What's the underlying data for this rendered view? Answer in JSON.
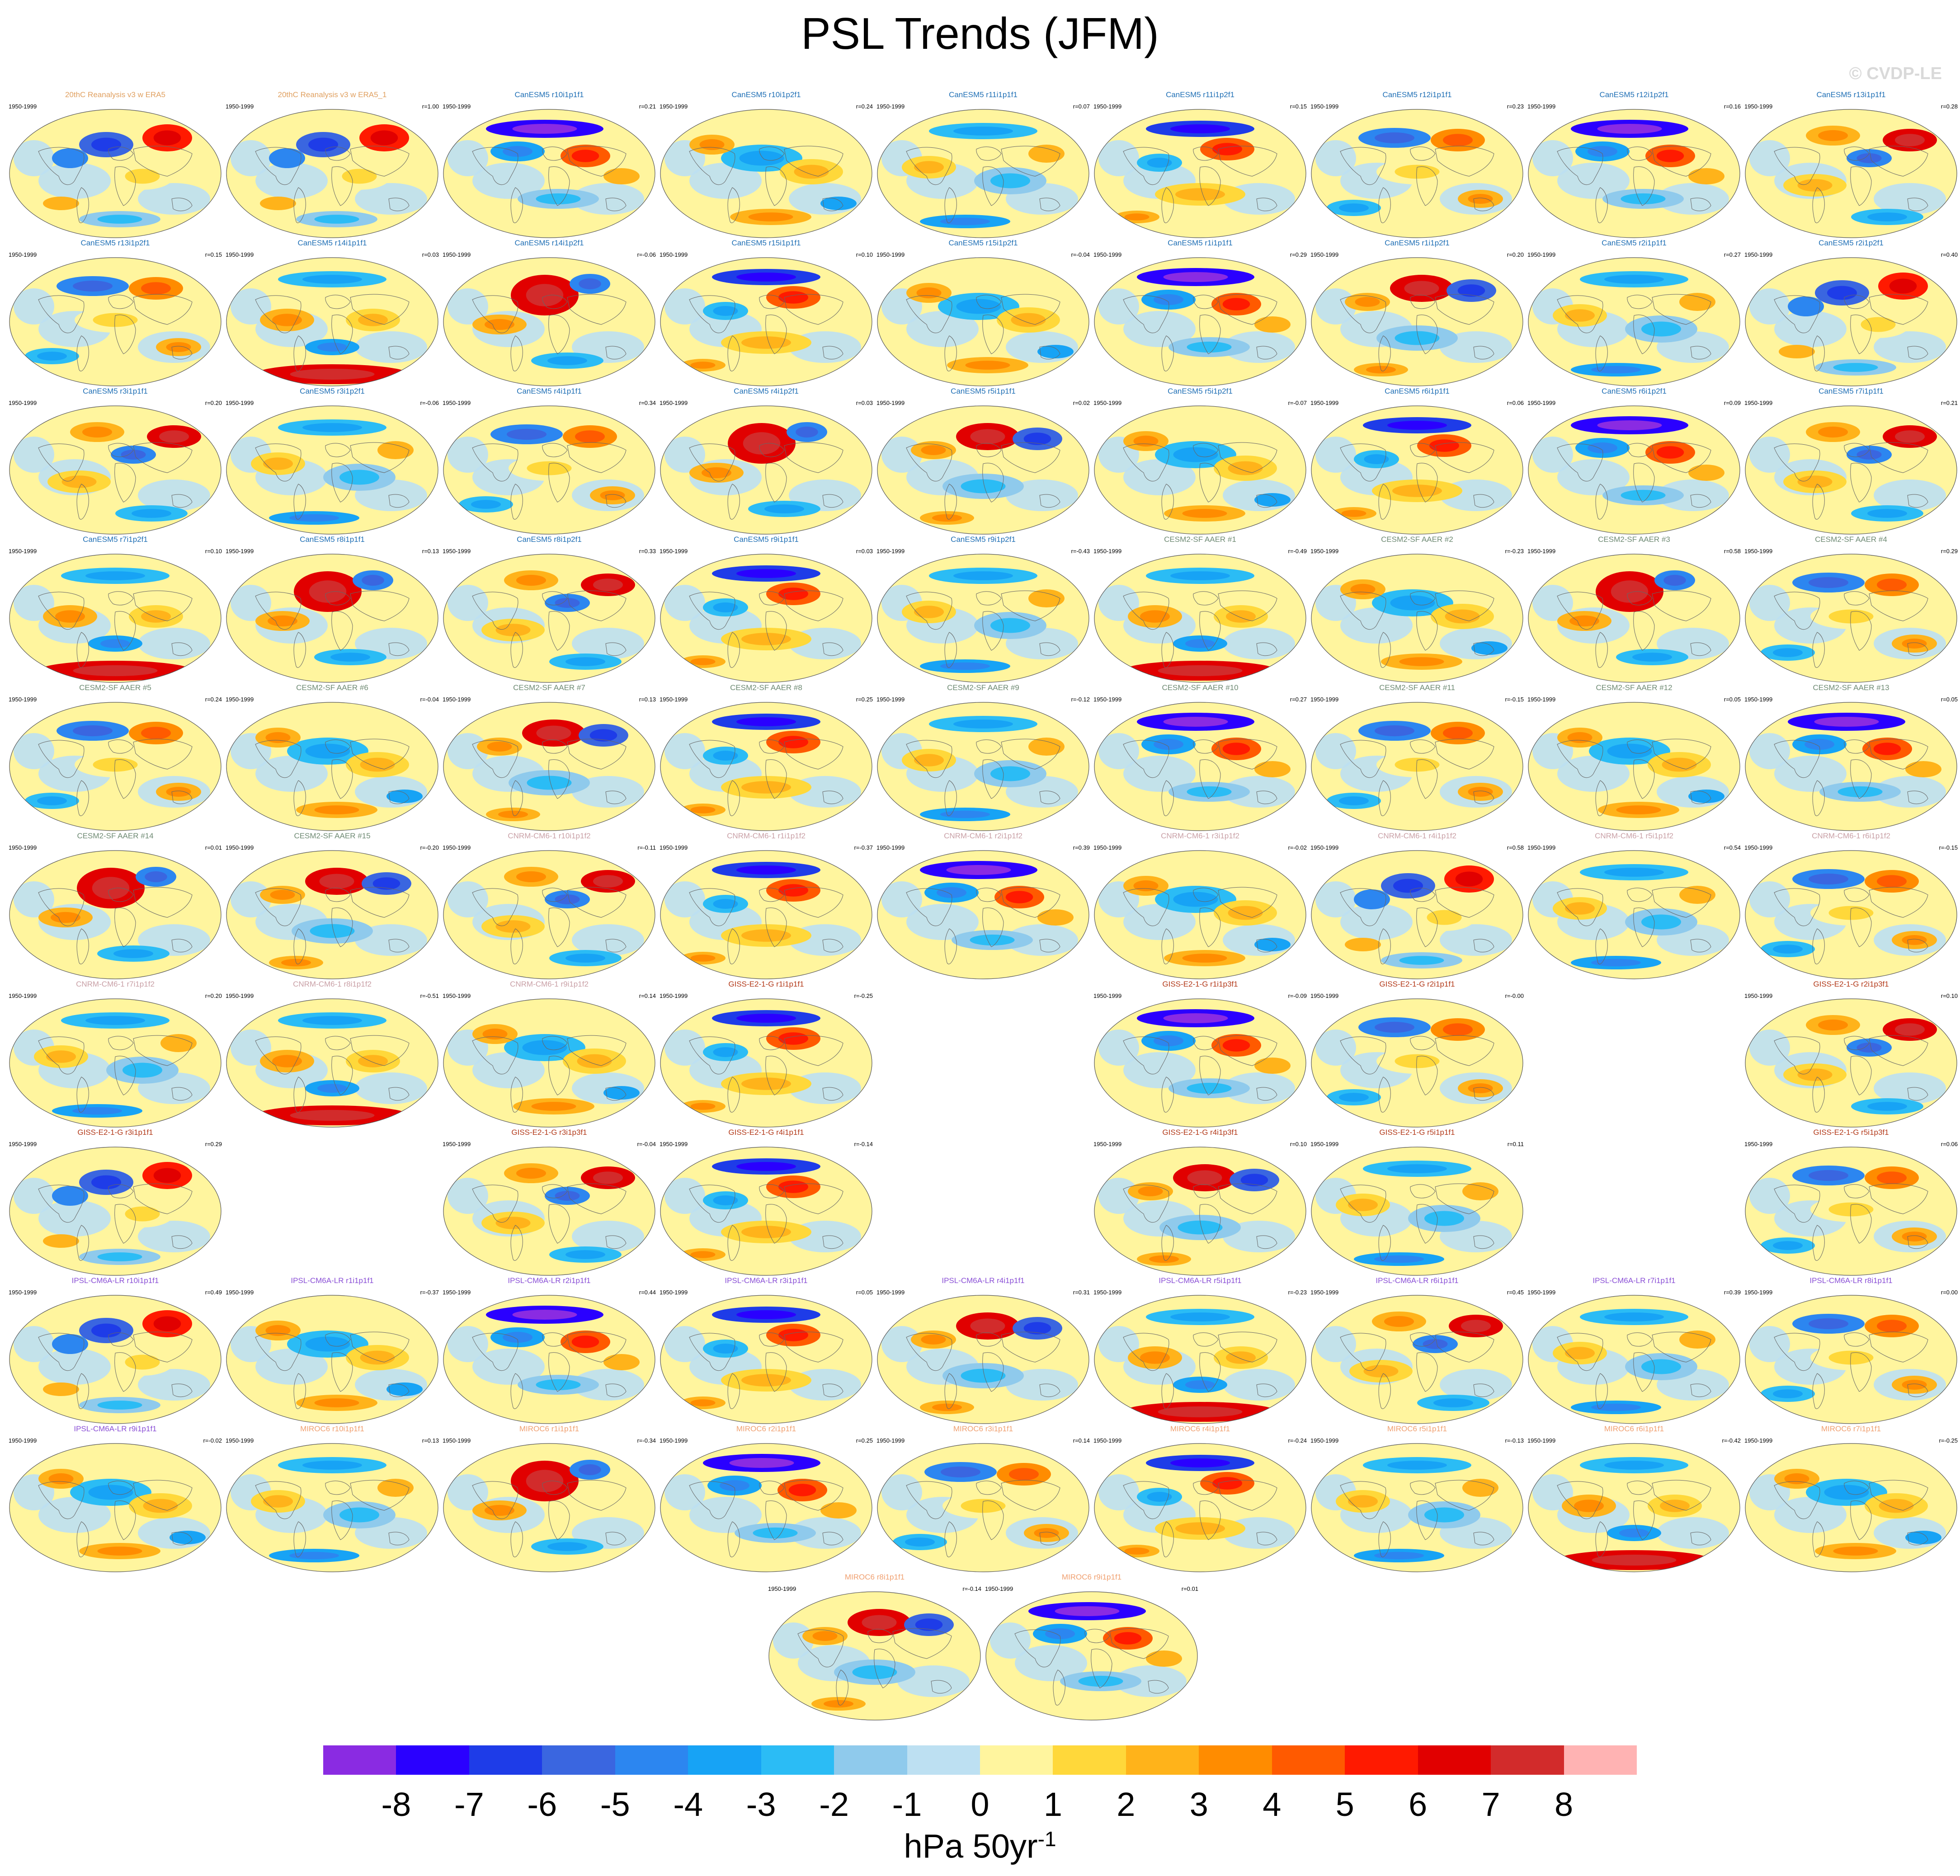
{
  "title": "PSL Trends (JFM)",
  "watermark": "© CVDP-LE",
  "units": {
    "text": "hPa 50yr",
    "sup": "-1"
  },
  "chart_data": {
    "type": "heatmap",
    "projection": "global-map-panels",
    "variable": "PSL",
    "season": "JFM",
    "period": "1950-1999",
    "colorbar": {
      "levels": [
        -8,
        -7,
        -6,
        -5,
        -4,
        -3,
        -2,
        -1,
        0,
        1,
        2,
        3,
        4,
        5,
        6,
        7,
        8
      ],
      "colors": [
        "#8a2be2",
        "#2a00ff",
        "#1e3ce8",
        "#3a66e0",
        "#2c86f0",
        "#17a3f5",
        "#2bbcf5",
        "#8fcaec",
        "#bde0f2",
        "#fff59e",
        "#ffd83a",
        "#ffb31a",
        "#ff8c00",
        "#ff5a00",
        "#ff1a00",
        "#e10000",
        "#d22b2b",
        "#ffb3b3"
      ]
    },
    "panels": [
      {
        "title": "20thC Reanalysis v3 w ERA5",
        "corr": "",
        "color": "#e0a060",
        "pattern": 0
      },
      {
        "title": "20thC Reanalysis v3 w ERA5_1",
        "corr": "r=1.00",
        "color": "#e0a060",
        "pattern": 0
      },
      {
        "title": "CanESM5 r10i1p1f1",
        "corr": "r=0.21",
        "color": "#1f6fb5",
        "pattern": 2
      },
      {
        "title": "CanESM5 r10i1p2f1",
        "corr": "r=0.24",
        "color": "#1f6fb5",
        "pattern": 4
      },
      {
        "title": "CanESM5 r11i1p1f1",
        "corr": "r=0.07",
        "color": "#1f6fb5",
        "pattern": 3
      },
      {
        "title": "CanESM5 r11i1p2f1",
        "corr": "r=0.15",
        "color": "#1f6fb5",
        "pattern": 5
      },
      {
        "title": "CanESM5 r12i1p1f1",
        "corr": "r=0.23",
        "color": "#1f6fb5",
        "pattern": 1
      },
      {
        "title": "CanESM5 r12i1p2f1",
        "corr": "r=0.16",
        "color": "#1f6fb5",
        "pattern": 2
      },
      {
        "title": "CanESM5 r13i1p1f1",
        "corr": "r=0.28",
        "color": "#1f6fb5",
        "pattern": 6
      },
      {
        "title": "CanESM5 r13i1p2f1",
        "corr": "r=0.15",
        "color": "#1f6fb5",
        "pattern": 1
      },
      {
        "title": "CanESM5 r14i1p1f1",
        "corr": "r=0.03",
        "color": "#1f6fb5",
        "pattern": 7
      },
      {
        "title": "CanESM5 r14i1p2f1",
        "corr": "r=-0.06",
        "color": "#1f6fb5",
        "pattern": 8
      },
      {
        "title": "CanESM5 r15i1p1f1",
        "corr": "r=0.10",
        "color": "#1f6fb5",
        "pattern": 5
      },
      {
        "title": "CanESM5 r15i1p2f1",
        "corr": "r=-0.04",
        "color": "#1f6fb5",
        "pattern": 4
      },
      {
        "title": "CanESM5 r1i1p1f1",
        "corr": "r=0.29",
        "color": "#1f6fb5",
        "pattern": 2
      },
      {
        "title": "CanESM5 r1i1p2f1",
        "corr": "r=0.20",
        "color": "#1f6fb5",
        "pattern": 9
      },
      {
        "title": "CanESM5 r2i1p1f1",
        "corr": "r=0.27",
        "color": "#1f6fb5",
        "pattern": 3
      },
      {
        "title": "CanESM5 r2i1p2f1",
        "corr": "r=0.40",
        "color": "#1f6fb5",
        "pattern": 0
      },
      {
        "title": "CanESM5 r3i1p1f1",
        "corr": "r=0.20",
        "color": "#1f6fb5",
        "pattern": 6
      },
      {
        "title": "CanESM5 r3i1p2f1",
        "corr": "r=-0.06",
        "color": "#1f6fb5",
        "pattern": 3
      },
      {
        "title": "CanESM5 r4i1p1f1",
        "corr": "r=0.34",
        "color": "#1f6fb5",
        "pattern": 1
      },
      {
        "title": "CanESM5 r4i1p2f1",
        "corr": "r=0.03",
        "color": "#1f6fb5",
        "pattern": 8
      },
      {
        "title": "CanESM5 r5i1p1f1",
        "corr": "r=0.02",
        "color": "#1f6fb5",
        "pattern": 9
      },
      {
        "title": "CanESM5 r5i1p2f1",
        "corr": "r=-0.07",
        "color": "#1f6fb5",
        "pattern": 4
      },
      {
        "title": "CanESM5 r6i1p1f1",
        "corr": "r=0.06",
        "color": "#1f6fb5",
        "pattern": 5
      },
      {
        "title": "CanESM5 r6i1p2f1",
        "corr": "r=0.09",
        "color": "#1f6fb5",
        "pattern": 2
      },
      {
        "title": "CanESM5 r7i1p1f1",
        "corr": "r=0.21",
        "color": "#1f6fb5",
        "pattern": 6
      },
      {
        "title": "CanESM5 r7i1p2f1",
        "corr": "r=0.10",
        "color": "#1f6fb5",
        "pattern": 7
      },
      {
        "title": "CanESM5 r8i1p1f1",
        "corr": "r=0.13",
        "color": "#1f6fb5",
        "pattern": 8
      },
      {
        "title": "CanESM5 r8i1p2f1",
        "corr": "r=0.33",
        "color": "#1f6fb5",
        "pattern": 6
      },
      {
        "title": "CanESM5 r9i1p1f1",
        "corr": "r=0.03",
        "color": "#1f6fb5",
        "pattern": 5
      },
      {
        "title": "CanESM5 r9i1p2f1",
        "corr": "r=-0.43",
        "color": "#1f6fb5",
        "pattern": 3
      },
      {
        "title": "CESM2-SF AAER #1",
        "corr": "r=-0.49",
        "color": "#6e8a73",
        "pattern": 7
      },
      {
        "title": "CESM2-SF AAER #2",
        "corr": "r=-0.23",
        "color": "#6e8a73",
        "pattern": 4
      },
      {
        "title": "CESM2-SF AAER #3",
        "corr": "r=0.58",
        "color": "#6e8a73",
        "pattern": 8
      },
      {
        "title": "CESM2-SF AAER #4",
        "corr": "r=0.29",
        "color": "#6e8a73",
        "pattern": 1
      },
      {
        "title": "CESM2-SF AAER #5",
        "corr": "r=0.24",
        "color": "#6e8a73",
        "pattern": 1
      },
      {
        "title": "CESM2-SF AAER #6",
        "corr": "r=-0.04",
        "color": "#6e8a73",
        "pattern": 4
      },
      {
        "title": "CESM2-SF AAER #7",
        "corr": "r=0.13",
        "color": "#6e8a73",
        "pattern": 9
      },
      {
        "title": "CESM2-SF AAER #8",
        "corr": "r=0.25",
        "color": "#6e8a73",
        "pattern": 5
      },
      {
        "title": "CESM2-SF AAER #9",
        "corr": "r=-0.12",
        "color": "#6e8a73",
        "pattern": 3
      },
      {
        "title": "CESM2-SF AAER #10",
        "corr": "r=0.27",
        "color": "#6e8a73",
        "pattern": 2
      },
      {
        "title": "CESM2-SF AAER #11",
        "corr": "r=-0.15",
        "color": "#6e8a73",
        "pattern": 1
      },
      {
        "title": "CESM2-SF AAER #12",
        "corr": "r=0.05",
        "color": "#6e8a73",
        "pattern": 4
      },
      {
        "title": "CESM2-SF AAER #13",
        "corr": "r=0.05",
        "color": "#6e8a73",
        "pattern": 2
      },
      {
        "title": "CESM2-SF AAER #14",
        "corr": "r=0.01",
        "color": "#6e8a73",
        "pattern": 8
      },
      {
        "title": "CESM2-SF AAER #15",
        "corr": "r=-0.20",
        "color": "#6e8a73",
        "pattern": 9
      },
      {
        "title": "CNRM-CM6-1 r10i1p1f2",
        "corr": "r=-0.11",
        "color": "#c9a0a6",
        "pattern": 6
      },
      {
        "title": "CNRM-CM6-1 r1i1p1f2",
        "corr": "r=-0.37",
        "color": "#c9a0a6",
        "pattern": 5
      },
      {
        "title": "CNRM-CM6-1 r2i1p1f2",
        "corr": "r=0.39",
        "color": "#c9a0a6",
        "pattern": 2
      },
      {
        "title": "CNRM-CM6-1 r3i1p1f2",
        "corr": "r=-0.02",
        "color": "#c9a0a6",
        "pattern": 4
      },
      {
        "title": "CNRM-CM6-1 r4i1p1f2",
        "corr": "r=0.58",
        "color": "#c9a0a6",
        "pattern": 0
      },
      {
        "title": "CNRM-CM6-1 r5i1p1f2",
        "corr": "r=0.54",
        "color": "#c9a0a6",
        "pattern": 3
      },
      {
        "title": "CNRM-CM6-1 r6i1p1f2",
        "corr": "r=-0.15",
        "color": "#c9a0a6",
        "pattern": 1
      },
      {
        "title": "CNRM-CM6-1 r7i1p1f2",
        "corr": "r=0.20",
        "color": "#c9a0a6",
        "pattern": 3
      },
      {
        "title": "CNRM-CM6-1 r8i1p1f2",
        "corr": "r=-0.51",
        "color": "#c9a0a6",
        "pattern": 7
      },
      {
        "title": "CNRM-CM6-1 r9i1p1f2",
        "corr": "r=0.14",
        "color": "#c9a0a6",
        "pattern": 4
      },
      {
        "title": "GISS-E2-1-G r1i1p1f1",
        "corr": "r=-0.25",
        "color": "#b33a1a",
        "pattern": 5
      },
      {
        "title": "GISS-E2-1-G r1i1p3f1",
        "corr": "r=-0.09",
        "color": "#b33a1a",
        "pattern": 2
      },
      {
        "title": "GISS-E2-1-G r2i1p1f1",
        "corr": "r=-0.00",
        "color": "#b33a1a",
        "pattern": 1
      },
      {
        "title": "GISS-E2-1-G r2i1p3f1",
        "corr": "r=0.10",
        "color": "#b33a1a",
        "pattern": 6
      },
      {
        "title": "GISS-E2-1-G r3i1p1f1",
        "corr": "r=0.29",
        "color": "#b33a1a",
        "pattern": 0
      },
      {
        "title": "GISS-E2-1-G r3i1p3f1",
        "corr": "r=-0.04",
        "color": "#b33a1a",
        "pattern": 6
      },
      {
        "title": "GISS-E2-1-G r4i1p1f1",
        "corr": "r=-0.14",
        "color": "#b33a1a",
        "pattern": 5
      },
      {
        "title": "GISS-E2-1-G r4i1p3f1",
        "corr": "r=0.10",
        "color": "#b33a1a",
        "pattern": 9
      },
      {
        "title": "GISS-E2-1-G r5i1p1f1",
        "corr": "r=0.11",
        "color": "#b33a1a",
        "pattern": 3
      },
      {
        "title": "GISS-E2-1-G r5i1p3f1",
        "corr": "r=0.06",
        "color": "#b33a1a",
        "pattern": 1
      },
      {
        "title": "IPSL-CM6A-LR r10i1p1f1",
        "corr": "r=0.49",
        "color": "#8a4fd6",
        "pattern": 0
      },
      {
        "title": "IPSL-CM6A-LR r1i1p1f1",
        "corr": "r=-0.37",
        "color": "#8a4fd6",
        "pattern": 4
      },
      {
        "title": "IPSL-CM6A-LR r2i1p1f1",
        "corr": "r=0.44",
        "color": "#8a4fd6",
        "pattern": 2
      },
      {
        "title": "IPSL-CM6A-LR r3i1p1f1",
        "corr": "r=0.05",
        "color": "#8a4fd6",
        "pattern": 5
      },
      {
        "title": "IPSL-CM6A-LR r4i1p1f1",
        "corr": "r=0.31",
        "color": "#8a4fd6",
        "pattern": 9
      },
      {
        "title": "IPSL-CM6A-LR r5i1p1f1",
        "corr": "r=-0.23",
        "color": "#8a4fd6",
        "pattern": 7
      },
      {
        "title": "IPSL-CM6A-LR r6i1p1f1",
        "corr": "r=0.45",
        "color": "#8a4fd6",
        "pattern": 6
      },
      {
        "title": "IPSL-CM6A-LR r7i1p1f1",
        "corr": "r=0.39",
        "color": "#8a4fd6",
        "pattern": 3
      },
      {
        "title": "IPSL-CM6A-LR r8i1p1f1",
        "corr": "r=0.00",
        "color": "#8a4fd6",
        "pattern": 1
      },
      {
        "title": "IPSL-CM6A-LR r9i1p1f1",
        "corr": "r=-0.02",
        "color": "#8a4fd6",
        "pattern": 4
      },
      {
        "title": "MIROC6 r10i1p1f1",
        "corr": "r=0.13",
        "color": "#f0a070",
        "pattern": 3
      },
      {
        "title": "MIROC6 r1i1p1f1",
        "corr": "r=-0.34",
        "color": "#f0a070",
        "pattern": 8
      },
      {
        "title": "MIROC6 r2i1p1f1",
        "corr": "r=0.25",
        "color": "#f0a070",
        "pattern": 2
      },
      {
        "title": "MIROC6 r3i1p1f1",
        "corr": "r=0.14",
        "color": "#f0a070",
        "pattern": 1
      },
      {
        "title": "MIROC6 r4i1p1f1",
        "corr": "r=-0.24",
        "color": "#f0a070",
        "pattern": 5
      },
      {
        "title": "MIROC6 r5i1p1f1",
        "corr": "r=-0.13",
        "color": "#f0a070",
        "pattern": 3
      },
      {
        "title": "MIROC6 r6i1p1f1",
        "corr": "r=-0.42",
        "color": "#f0a070",
        "pattern": 7
      },
      {
        "title": "MIROC6 r7i1p1f1",
        "corr": "r=-0.25",
        "color": "#f0a070",
        "pattern": 4
      },
      {
        "title": "MIROC6 r8i1p1f1",
        "corr": "r=-0.14",
        "color": "#f0a070",
        "pattern": 9
      },
      {
        "title": "MIROC6 r9i1p1f1",
        "corr": "r=0.01",
        "color": "#f0a070",
        "pattern": 2
      }
    ]
  }
}
